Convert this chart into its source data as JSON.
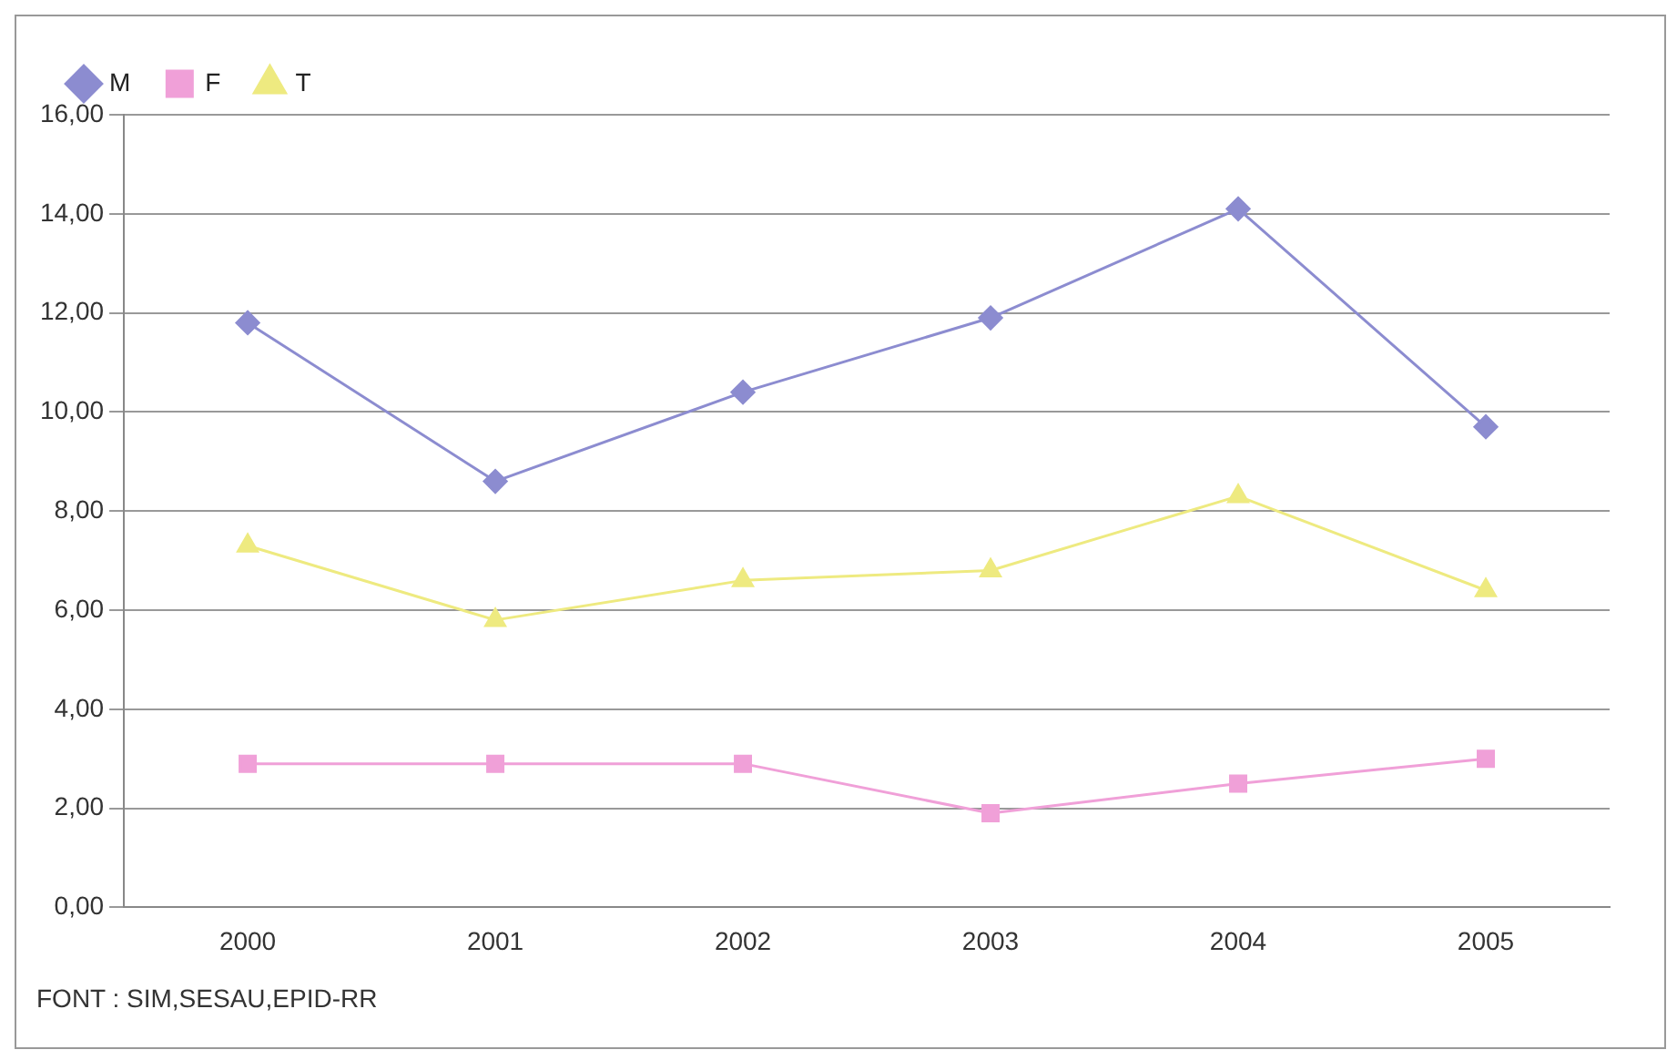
{
  "chart_data": {
    "type": "line",
    "categories": [
      "2000",
      "2001",
      "2002",
      "2003",
      "2004",
      "2005"
    ],
    "series": [
      {
        "name": "M",
        "color": "#8c8cd0",
        "marker": "diamond",
        "values": [
          11.8,
          8.6,
          10.4,
          11.9,
          14.1,
          9.7
        ]
      },
      {
        "name": "F",
        "color": "#f0a0d8",
        "marker": "square",
        "values": [
          2.9,
          2.9,
          2.9,
          1.9,
          2.5,
          3.0
        ]
      },
      {
        "name": "T",
        "color": "#eeea80",
        "marker": "triangle",
        "values": [
          7.3,
          5.8,
          6.6,
          6.8,
          8.3,
          6.4
        ]
      }
    ],
    "ylim": [
      0,
      16
    ],
    "yticks": [
      {
        "value": 0,
        "label": "0,00"
      },
      {
        "value": 2,
        "label": "2,00"
      },
      {
        "value": 4,
        "label": "4,00"
      },
      {
        "value": 6,
        "label": "6,00"
      },
      {
        "value": 8,
        "label": "8,00"
      },
      {
        "value": 10,
        "label": "10,00"
      },
      {
        "value": 12,
        "label": "12,00"
      },
      {
        "value": 14,
        "label": "14,00"
      },
      {
        "value": 16,
        "label": "16,00"
      }
    ],
    "grid": "y",
    "legend": "top left",
    "annotations": [
      "FONT : SIM,SESAU,EPID-RR"
    ]
  }
}
